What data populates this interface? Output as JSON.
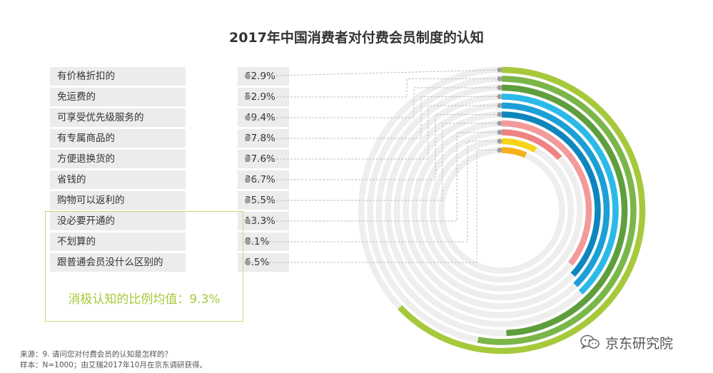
{
  "title": "2017年中国消费者对付费会员制度的认知",
  "chart_data": {
    "type": "radial-bar",
    "title": "2017年中国消费者对付费会员制度的认知",
    "max": 100,
    "categories": [
      "有价格折扣的",
      "免运费的",
      "可享受优先级服务的",
      "有专属商品的",
      "方便退换货的",
      "省钱的",
      "购物可以返利的",
      "没必要开通的",
      "不划算的",
      "跟普通会员没什么区别的"
    ],
    "values": [
      62.9,
      52.9,
      49.4,
      37.8,
      37.6,
      36.7,
      35.5,
      13.3,
      8.1,
      6.5
    ],
    "value_labels": [
      "62.9%",
      "52.9%",
      "49.4%",
      "37.8%",
      "37.6%",
      "36.7%",
      "35.5%",
      "13.3%",
      "8.1%",
      "6.5%"
    ],
    "colors": [
      "#a6c93b",
      "#7ab648",
      "#5e9e3d",
      "#2bbae8",
      "#1a9fd6",
      "#0d86be",
      "#f39a9a",
      "#ef8282",
      "#f7d417",
      "#f5b21a"
    ],
    "track_color": "#eeeeee",
    "negative_summary": "消极认知的比例均值：9.3%"
  },
  "footnotes": {
    "source": "来源：9. 请问您对付费会员的认知是怎样的？",
    "sample": "样本：N=1000；由艾瑞2017年10月在京东调研获得。"
  },
  "brand": {
    "name": "京东研究院",
    "icon": "wechat-icon"
  }
}
